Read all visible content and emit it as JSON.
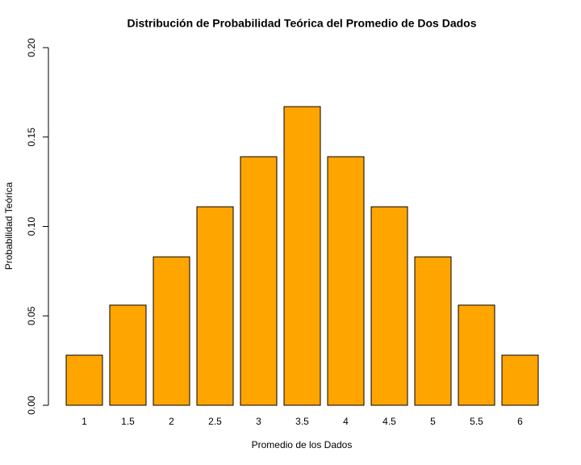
{
  "chart_data": {
    "type": "bar",
    "title": "Distribución de Probabilidad Teórica del Promedio de Dos Dados",
    "x_label": "Promedio de los Dados",
    "y_label": "Probabilidad Teórica",
    "categories": [
      "1",
      "1.5",
      "2",
      "2.5",
      "3",
      "3.5",
      "4",
      "4.5",
      "5",
      "5.5",
      "6"
    ],
    "values": [
      0.028,
      0.056,
      0.083,
      0.111,
      0.139,
      0.167,
      0.139,
      0.111,
      0.083,
      0.056,
      0.028
    ],
    "color": "#ffa500",
    "ylim": [
      0,
      0.2
    ],
    "yticks": [
      {
        "value": 0,
        "label": "0.00"
      },
      {
        "value": 0.05,
        "label": "0.05"
      },
      {
        "value": 0.1,
        "label": "0.10"
      },
      {
        "value": 0.15,
        "label": "0.15"
      },
      {
        "value": 0.2,
        "label": "0.20"
      }
    ],
    "grid": false
  }
}
